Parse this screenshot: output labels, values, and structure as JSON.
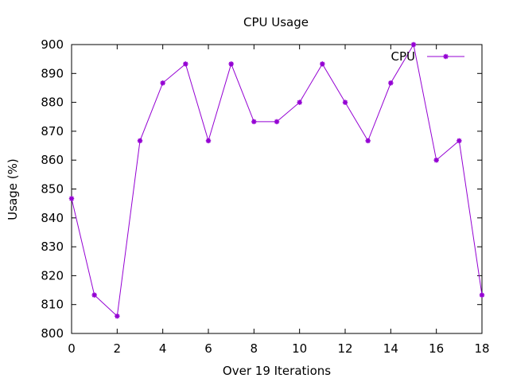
{
  "chart_data": {
    "type": "line",
    "title": "CPU Usage",
    "xlabel": "Over 19 Iterations",
    "ylabel": "Usage (%)",
    "xlim": [
      0,
      18
    ],
    "ylim": [
      800,
      900
    ],
    "x_ticks": [
      0,
      2,
      4,
      6,
      8,
      10,
      12,
      14,
      16,
      18
    ],
    "y_ticks": [
      800,
      810,
      820,
      830,
      840,
      850,
      860,
      870,
      880,
      890,
      900
    ],
    "grid": false,
    "legend_position": "top-right",
    "series": [
      {
        "name": "CPU",
        "color": "#9400d3",
        "marker": "asterisk",
        "x": [
          0,
          1,
          2,
          3,
          4,
          5,
          6,
          7,
          8,
          9,
          10,
          11,
          12,
          13,
          14,
          15,
          16,
          17,
          18
        ],
        "y": [
          846.7,
          813.3,
          806.0,
          866.7,
          886.7,
          893.3,
          866.7,
          893.3,
          873.3,
          873.3,
          880.0,
          893.3,
          880.0,
          866.7,
          886.7,
          900.0,
          860.0,
          866.7,
          813.3
        ]
      }
    ]
  }
}
